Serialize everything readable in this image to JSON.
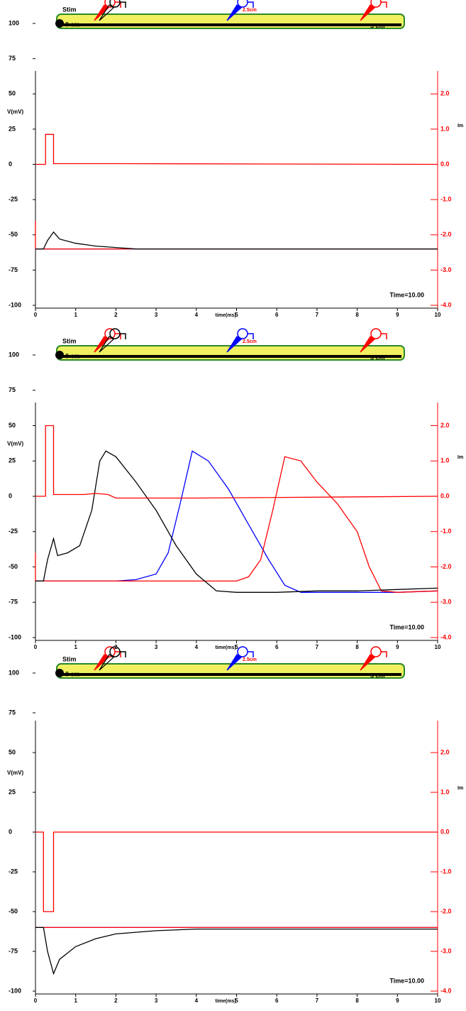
{
  "chart_data": [
    {
      "type": "line",
      "ylabel": "V(mV)",
      "y2label": "Im",
      "xlabel": "time(ms)",
      "annotation": "Time=10.00",
      "diagram": {
        "stim": "Stim",
        "left": "0 cm",
        "mid": "2.5cm",
        "right": "5 cm"
      },
      "xlim": [
        0,
        10
      ],
      "xticks": [
        0,
        1,
        2,
        3,
        4,
        5,
        6,
        7,
        8,
        9,
        10
      ],
      "ylim": [
        -100,
        100
      ],
      "yticks": [
        100,
        75,
        50,
        25,
        0,
        -25,
        -50,
        -75,
        -100
      ],
      "y2lim": [
        -4,
        4
      ],
      "y2ticks": [
        {
          "value": 2,
          "label": "2.0"
        },
        {
          "value": 1,
          "label": "1.0"
        },
        {
          "value": 0,
          "label": "0.0"
        },
        {
          "value": -1,
          "label": "-1.0"
        },
        {
          "value": -2,
          "label": "-2.0"
        },
        {
          "value": -3,
          "label": "-3.0"
        },
        {
          "value": -4,
          "label": "-4.0"
        }
      ],
      "series": [
        {
          "color": "#0000ff",
          "x": [
            0,
            10
          ],
          "values": [
            -60,
            -60
          ]
        },
        {
          "color": "#ff0000",
          "x": [
            0,
            0,
            10
          ],
          "values": [
            -40,
            -60,
            -60
          ]
        },
        {
          "color": "#000000",
          "x": [
            0,
            0.2,
            0.3,
            0.45,
            0.6,
            1,
            1.5,
            2,
            2.5,
            10
          ],
          "values": [
            -60,
            -60,
            -54,
            -48,
            -53,
            -56,
            -58,
            -59,
            -60,
            -60
          ]
        },
        {
          "color": "#ff0000",
          "axis": "y2",
          "x": [
            0,
            0.25,
            0.25,
            0.45,
            0.45,
            2.1,
            10
          ],
          "values": [
            0,
            0,
            0.85,
            0.85,
            0.02,
            0.02,
            0
          ]
        }
      ]
    },
    {
      "type": "line",
      "ylabel": "V(mV)",
      "y2label": "Im",
      "xlabel": "time(ms)",
      "annotation": "Time=10.00",
      "diagram": {
        "stim": "Stim",
        "left": "0 cm",
        "mid": "2.5cm",
        "right": "5 cm"
      },
      "xlim": [
        0,
        10
      ],
      "xticks": [
        0,
        1,
        2,
        3,
        4,
        5,
        6,
        7,
        8,
        9,
        10
      ],
      "ylim": [
        -100,
        100
      ],
      "yticks": [
        100,
        75,
        50,
        25,
        0,
        -25,
        -50,
        -75,
        -100
      ],
      "y2lim": [
        -4,
        4
      ],
      "y2ticks": [
        {
          "value": 2,
          "label": "2.0"
        },
        {
          "value": 1,
          "label": "1.0"
        },
        {
          "value": 0,
          "label": "0.0"
        },
        {
          "value": -1,
          "label": "-1.0"
        },
        {
          "value": -2,
          "label": "-2.0"
        },
        {
          "value": -3,
          "label": "-3.0"
        },
        {
          "value": -4,
          "label": "-4.0"
        }
      ],
      "series": [
        {
          "color": "#0000ff",
          "x": [
            0,
            2,
            2.5,
            3,
            3.3,
            3.6,
            3.9,
            4.3,
            4.8,
            5.3,
            5.8,
            6.2,
            6.6,
            7,
            8,
            9,
            10
          ],
          "values": [
            -60,
            -60,
            -59,
            -55,
            -40,
            -5,
            32,
            25,
            5,
            -20,
            -45,
            -63,
            -68,
            -68,
            -68,
            -68,
            -67
          ]
        },
        {
          "color": "#ff0000",
          "x": [
            0,
            0,
            5,
            5.3,
            5.6,
            5.9,
            6.2,
            6.6,
            7,
            7.5,
            8,
            8.3,
            8.6,
            9,
            10
          ],
          "values": [
            -40,
            -60,
            -60,
            -57,
            -45,
            -10,
            28,
            25,
            10,
            -5,
            -25,
            -50,
            -67,
            -68,
            -67
          ]
        },
        {
          "color": "#000000",
          "x": [
            0,
            0.2,
            0.3,
            0.45,
            0.55,
            0.8,
            1.1,
            1.4,
            1.6,
            1.75,
            2,
            2.5,
            3,
            3.5,
            4,
            4.5,
            5,
            6,
            7,
            8,
            9,
            10
          ],
          "values": [
            -60,
            -60,
            -45,
            -30,
            -42,
            -40,
            -35,
            -10,
            25,
            32,
            28,
            10,
            -10,
            -35,
            -55,
            -67,
            -68,
            -68,
            -67,
            -67,
            -66,
            -65
          ]
        },
        {
          "color": "#ff0000",
          "axis": "y2",
          "x": [
            0,
            0.25,
            0.25,
            0.45,
            0.45,
            1.2,
            1.5,
            1.8,
            2,
            4,
            10
          ],
          "values": [
            0,
            0,
            2,
            2,
            0.05,
            0.05,
            0.08,
            0.05,
            -0.05,
            -0.05,
            0
          ]
        }
      ]
    },
    {
      "type": "line",
      "ylabel": "V(mV)",
      "y2label": "Im",
      "xlabel": "time(ms)",
      "annotation": "Time=10.00",
      "diagram": {
        "stim": "Stim",
        "left": "0 cm",
        "mid": "2.5cm",
        "right": "5 cm"
      },
      "xlim": [
        0,
        10
      ],
      "xticks": [
        0,
        1,
        2,
        3,
        4,
        5,
        6,
        7,
        8,
        9,
        10
      ],
      "ylim": [
        -100,
        100
      ],
      "yticks": [
        100,
        75,
        50,
        25,
        0,
        -25,
        -50,
        -75,
        -100
      ],
      "y2lim": [
        -4,
        4
      ],
      "y2ticks": [
        {
          "value": 2,
          "label": "2.0"
        },
        {
          "value": 1,
          "label": "1.0"
        },
        {
          "value": 0,
          "label": "0.0"
        },
        {
          "value": -1,
          "label": "-1.0"
        },
        {
          "value": -2,
          "label": "-2.0"
        },
        {
          "value": -3,
          "label": "-3.0"
        },
        {
          "value": -4,
          "label": "-4.0"
        }
      ],
      "series": [
        {
          "color": "#0000ff",
          "x": [
            0,
            10
          ],
          "values": [
            -60,
            -60
          ]
        },
        {
          "color": "#ff0000",
          "x": [
            0,
            10
          ],
          "values": [
            -60,
            -60
          ]
        },
        {
          "color": "#000000",
          "x": [
            0,
            0.2,
            0.3,
            0.45,
            0.6,
            1,
            1.5,
            2,
            3,
            4,
            10
          ],
          "values": [
            -60,
            -60,
            -75,
            -89,
            -80,
            -72,
            -67,
            -64,
            -62,
            -61,
            -61
          ]
        },
        {
          "color": "#ff0000",
          "axis": "y2",
          "x": [
            0,
            0.2,
            0.2,
            0.45,
            0.45,
            10
          ],
          "values": [
            0,
            0,
            -2,
            -2,
            0,
            0
          ]
        }
      ]
    }
  ]
}
